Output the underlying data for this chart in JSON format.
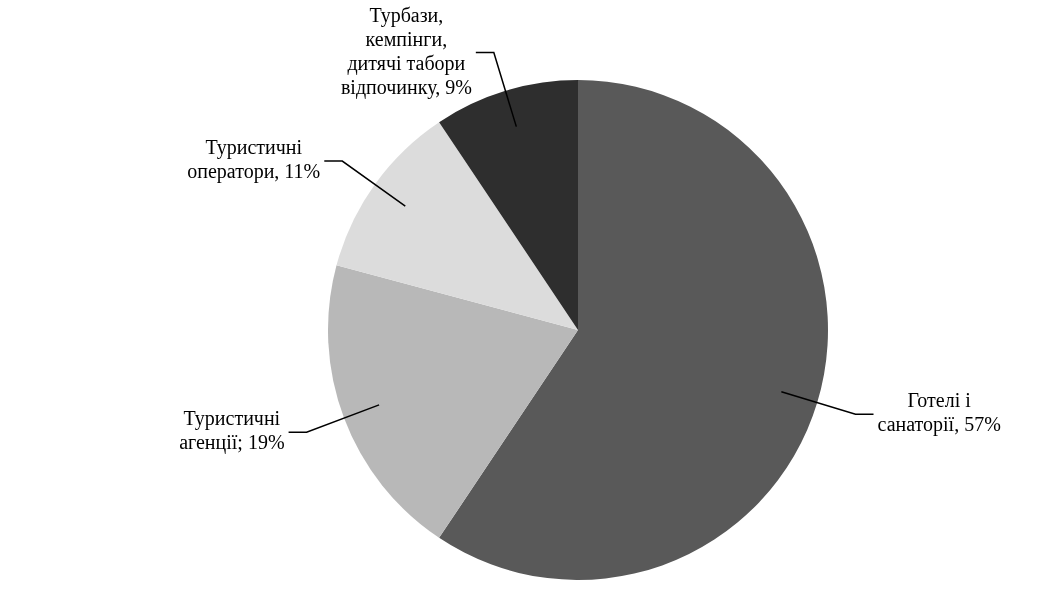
{
  "chart_data": {
    "type": "pie",
    "categories": [
      "Готелі і санаторії",
      "Туристичні агенції",
      "Туристичні оператори",
      "Турбази, кемпінги, дитячі табори відпочинку"
    ],
    "values": [
      57,
      19,
      11,
      9
    ],
    "value_labels": [
      ", 57%",
      "; 19%",
      ", 11%",
      ", 9%"
    ],
    "colors": [
      "#595959",
      "#b8b8b8",
      "#dcdcdc",
      "#2e2e2e"
    ],
    "legend": false
  }
}
